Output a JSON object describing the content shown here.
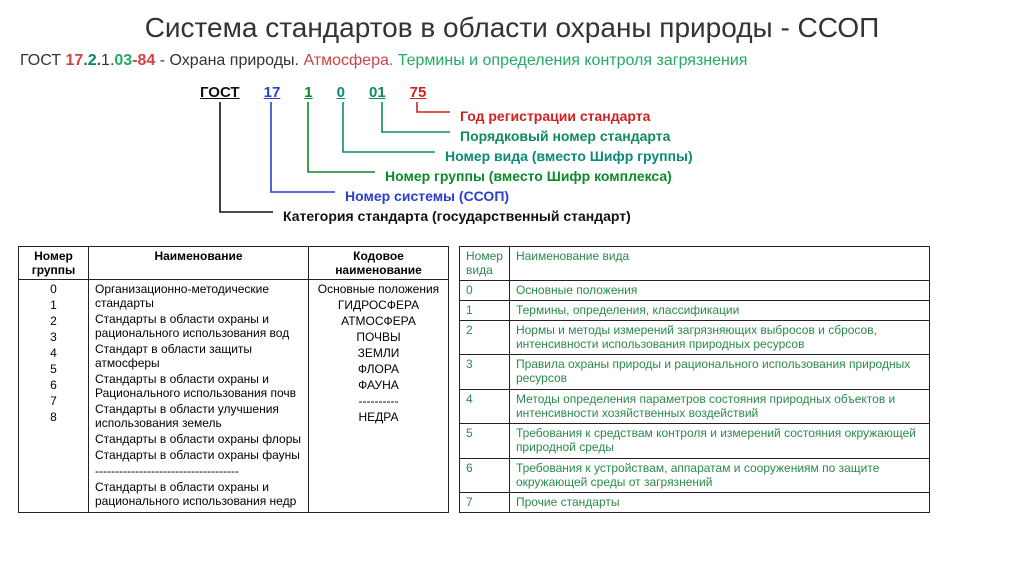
{
  "title": "Система стандартов в области охраны природы - ССОП",
  "subtitle": {
    "p1": "ГОСТ ",
    "p2": "17",
    "p3": ".2.",
    "p4": "1.",
    "p5": "03",
    "p6": "-84",
    "p7": " - Охрана природы. ",
    "p8": "Атмосфера.",
    "p9": " Термины и определения контроля загрязнения"
  },
  "code": {
    "c0": "ГОСТ",
    "c1": "17",
    "c2": "1",
    "c3": "0",
    "c4": "01",
    "c5": "75"
  },
  "desc": {
    "d1": "Год регистрации стандарта",
    "d2": "Порядковый номер стандарта",
    "d3": "Номер вида (вместо Шифр группы)",
    "d4": "Номер группы (вместо Шифр комплекса)",
    "d5": "Номер системы (ССОП)",
    "d6": "Категория стандарта (государственный стандарт)"
  },
  "left_table": {
    "headers": [
      "Номер группы",
      "Наименование",
      "Кодовое наименование"
    ],
    "rows": [
      [
        "0",
        "Организационно-методические стандарты",
        "Основные положения"
      ],
      [
        "1",
        "Стандарты в области охраны и рационального использования вод",
        "ГИДРОСФЕРА"
      ],
      [
        "2",
        "Стандарт в области защиты атмосферы",
        "АТМОСФЕРА"
      ],
      [
        "3",
        "Стандарты  в области охраны и Рационального использования почв",
        "ПОЧВЫ"
      ],
      [
        "4",
        "Стандарты в области улучшения использования земель",
        "ЗЕМЛИ"
      ],
      [
        "5",
        "Стандарты в области охраны флоры",
        "ФЛОРА"
      ],
      [
        "6",
        "Стандарты в области охраны фауны",
        "ФАУНА"
      ],
      [
        "7",
        "------------------------------------",
        "----------"
      ],
      [
        "8",
        "Стандарты в области охраны и рационального использования недр",
        "НЕДРА"
      ]
    ]
  },
  "right_table": {
    "headers": [
      "Номер вида",
      "Наименование вида"
    ],
    "rows": [
      [
        "0",
        "Основные положения"
      ],
      [
        "1",
        "Термины, определения, классификации"
      ],
      [
        "2",
        "Нормы и методы измерений загрязняющих выбросов и сбросов, интенсивности использования природных ресурсов"
      ],
      [
        "3",
        "Правила охраны природы и рационального использования природных ресурсов"
      ],
      [
        "4",
        "Методы определения параметров состояния природных объектов и интенсивности хозяйственных воздействий"
      ],
      [
        "5",
        "Требования к средствам контроля и измерений состояния окружающей природной среды"
      ],
      [
        "6",
        "Требования к устройствам, аппаратам и сооружениям по защите окружающей среды от загрязнений"
      ],
      [
        "7",
        "Прочие стандарты"
      ]
    ]
  }
}
